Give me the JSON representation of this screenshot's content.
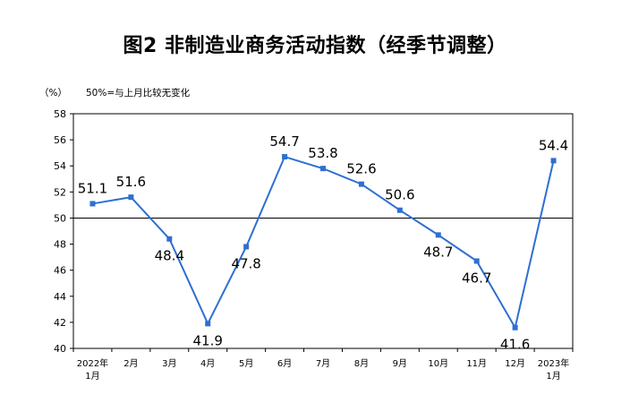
{
  "chart_data": {
    "type": "line",
    "title": "图2  非制造业商务活动指数（经季节调整）",
    "ylabel_unit": "（%）",
    "note": "50%=与上月比较无变化",
    "reference_line": 50,
    "ylim": [
      40,
      58
    ],
    "yticks": [
      40,
      42,
      44,
      46,
      48,
      50,
      52,
      54,
      56,
      58
    ],
    "grid": false,
    "categories": [
      [
        "2022年",
        "1月"
      ],
      [
        "2月"
      ],
      [
        "3月"
      ],
      [
        "4月"
      ],
      [
        "5月"
      ],
      [
        "6月"
      ],
      [
        "7月"
      ],
      [
        "8月"
      ],
      [
        "9月"
      ],
      [
        "10月"
      ],
      [
        "11月"
      ],
      [
        "12月"
      ],
      [
        "2023年",
        "1月"
      ]
    ],
    "series": [
      {
        "values": [
          51.1,
          51.6,
          48.4,
          41.9,
          47.8,
          54.7,
          53.8,
          52.6,
          50.6,
          48.7,
          46.7,
          41.6,
          54.4
        ],
        "color": "#2e6fd0",
        "labels": [
          "51.1",
          "51.6",
          "48.4",
          "41.9",
          "47.8",
          "54.7",
          "53.8",
          "52.6",
          "50.6",
          "48.7",
          "46.7",
          "41.6",
          "54.4"
        ]
      }
    ]
  }
}
